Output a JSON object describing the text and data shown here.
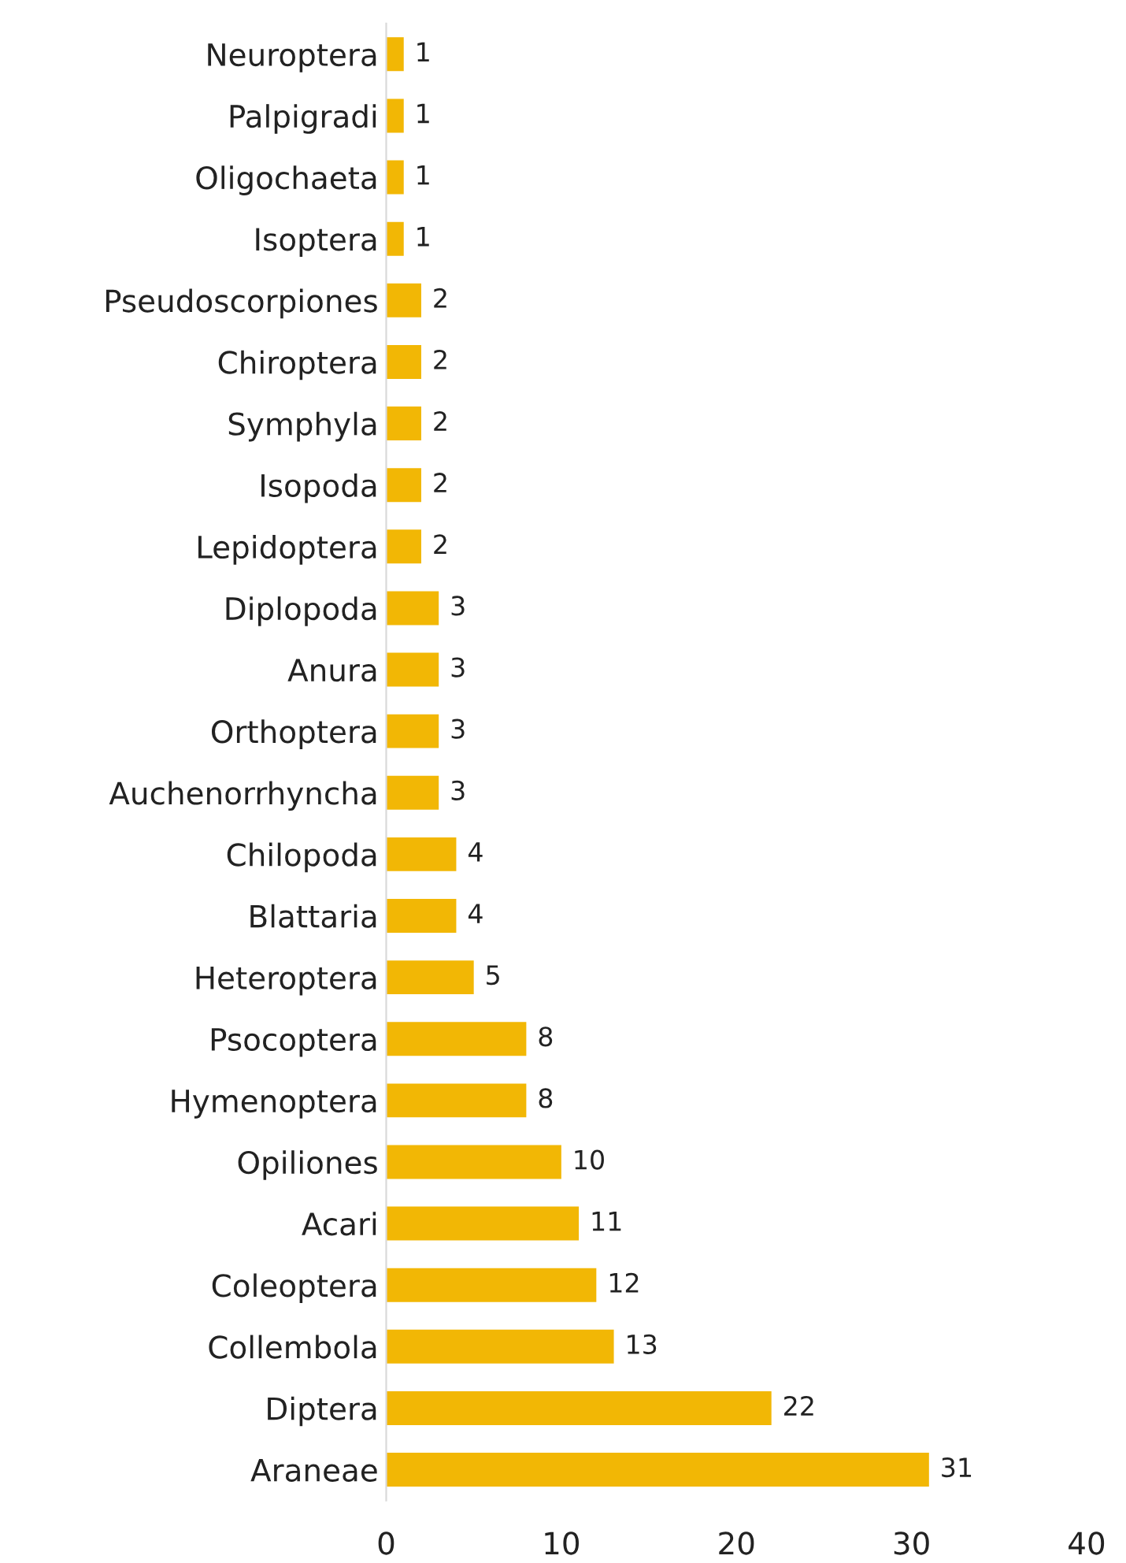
{
  "chart_data": {
    "type": "bar",
    "orientation": "horizontal",
    "categories": [
      "Neuroptera",
      "Palpigradi",
      "Oligochaeta",
      "Isoptera",
      "Pseudoscorpiones",
      "Chiroptera",
      "Symphyla",
      "Isopoda",
      "Lepidoptera",
      "Diplopoda",
      "Anura",
      "Orthoptera",
      "Auchenorrhyncha",
      "Chilopoda",
      "Blattaria",
      "Heteroptera",
      "Psocoptera",
      "Hymenoptera",
      "Opiliones",
      "Acari",
      "Coleoptera",
      "Collembola",
      "Diptera",
      "Araneae"
    ],
    "values": [
      1,
      1,
      1,
      1,
      2,
      2,
      2,
      2,
      2,
      3,
      3,
      3,
      3,
      4,
      4,
      5,
      8,
      8,
      10,
      11,
      12,
      13,
      22,
      31
    ],
    "color": "#f2b705",
    "xlim": [
      0,
      40
    ],
    "xticks": [
      0,
      10,
      20,
      30,
      40
    ],
    "data_labels": true,
    "grid": false,
    "legend": false
  }
}
